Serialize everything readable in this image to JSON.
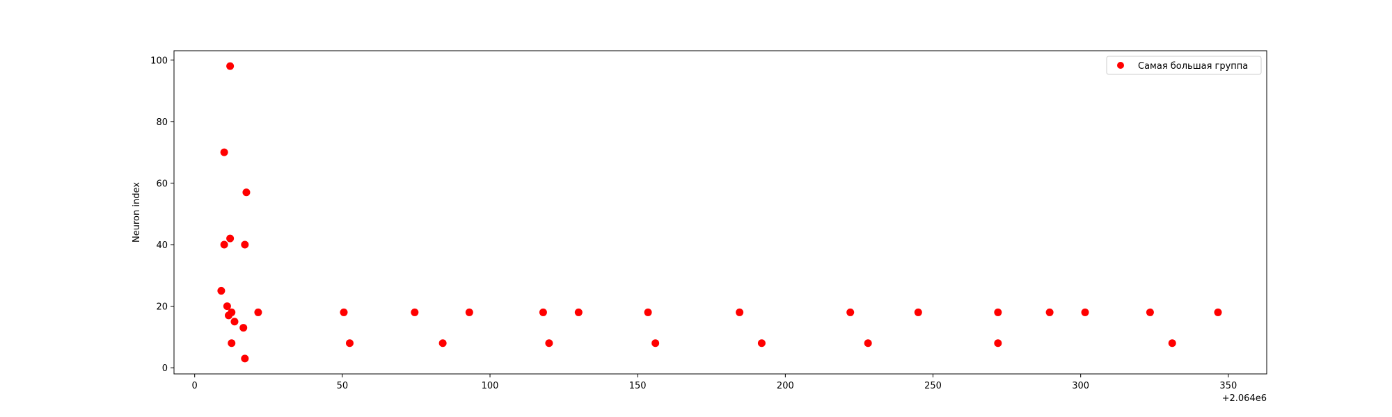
{
  "chart_data": {
    "type": "scatter",
    "title": "",
    "xlabel": "",
    "ylabel": "Neuron index",
    "x_offset_label": "+2.064e6",
    "xlim": [
      -7,
      363
    ],
    "ylim": [
      -2,
      103
    ],
    "x_ticks": [
      0,
      50,
      100,
      150,
      200,
      250,
      300,
      350
    ],
    "y_ticks": [
      0,
      20,
      40,
      60,
      80,
      100
    ],
    "grid": false,
    "legend_position": "top-right",
    "series": [
      {
        "name": "Самая большая группа",
        "color": "#ff0000",
        "points": [
          {
            "x": 9,
            "y": 25
          },
          {
            "x": 10,
            "y": 70
          },
          {
            "x": 10,
            "y": 40
          },
          {
            "x": 11,
            "y": 20
          },
          {
            "x": 11.5,
            "y": 17
          },
          {
            "x": 12,
            "y": 98
          },
          {
            "x": 12,
            "y": 42
          },
          {
            "x": 12.5,
            "y": 18
          },
          {
            "x": 12.5,
            "y": 8
          },
          {
            "x": 13.5,
            "y": 15
          },
          {
            "x": 16.5,
            "y": 13
          },
          {
            "x": 17,
            "y": 40
          },
          {
            "x": 17,
            "y": 3
          },
          {
            "x": 17.5,
            "y": 57
          },
          {
            "x": 21.5,
            "y": 18
          },
          {
            "x": 50.5,
            "y": 18
          },
          {
            "x": 52.5,
            "y": 8
          },
          {
            "x": 74.5,
            "y": 18
          },
          {
            "x": 84,
            "y": 8
          },
          {
            "x": 93,
            "y": 18
          },
          {
            "x": 118,
            "y": 18
          },
          {
            "x": 120,
            "y": 8
          },
          {
            "x": 130,
            "y": 18
          },
          {
            "x": 153.5,
            "y": 18
          },
          {
            "x": 156,
            "y": 8
          },
          {
            "x": 184.5,
            "y": 18
          },
          {
            "x": 192,
            "y": 8
          },
          {
            "x": 222,
            "y": 18
          },
          {
            "x": 228,
            "y": 8
          },
          {
            "x": 245,
            "y": 18
          },
          {
            "x": 272,
            "y": 18
          },
          {
            "x": 272,
            "y": 8
          },
          {
            "x": 289.5,
            "y": 18
          },
          {
            "x": 301.5,
            "y": 18
          },
          {
            "x": 323.5,
            "y": 18
          },
          {
            "x": 331,
            "y": 8
          },
          {
            "x": 346.5,
            "y": 18
          }
        ]
      }
    ]
  }
}
